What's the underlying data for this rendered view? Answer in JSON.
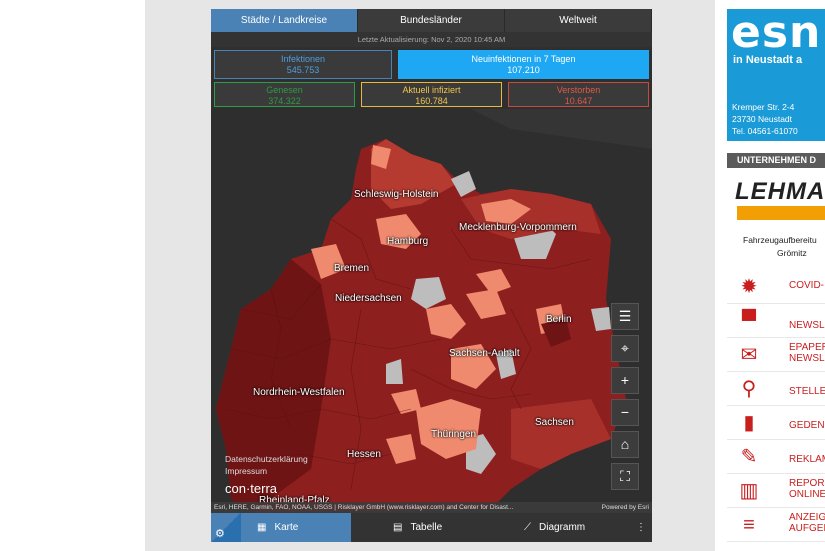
{
  "tabs": [
    "Städte / Landkreise",
    "Bundesländer",
    "Weltweit"
  ],
  "updated": "Letzte Aktualisierung: Nov 2, 2020 10:45 AM",
  "stats": {
    "infektionen": {
      "label": "Infektionen",
      "value": "545.753"
    },
    "neu7": {
      "label": "Neuinfektionen in 7 Tagen",
      "value": "107.210"
    },
    "genesen": {
      "label": "Genesen",
      "value": "374.322"
    },
    "aktuell": {
      "label": "Aktuell infiziert",
      "value": "160.784"
    },
    "verstorben": {
      "label": "Verstorben",
      "value": "10.647"
    }
  },
  "map_labels": {
    "sh": "Schleswig-Holstein",
    "hamburg": "Hamburg",
    "mv": "Mecklenburg-Vorpommern",
    "bremen": "Bremen",
    "nds": "Niedersachsen",
    "berlin": "Berlin",
    "st": "Sachsen-Anhalt",
    "nrw": "Nordrhein-Westfalen",
    "sachsen": "Sachsen",
    "th": "Thüringen",
    "hessen": "Hessen",
    "rp": "Rheinland-Pfalz"
  },
  "privacy": [
    "Datenschutzerklärung",
    "Impressum"
  ],
  "brand": "con·terra",
  "attribution": "Esri, HERE, Garmin, FAO, NOAA, USGS | Risklayer GmbH (www.risklayer.com) and Center for Disast...",
  "powered": "Powered by Esri",
  "bottom_nav": [
    "Karte",
    "Tabelle",
    "Diagramm"
  ],
  "ad_esn": {
    "logo": "esn",
    "title": "in Neustadt a",
    "addr": [
      "Kremper Str. 2-4",
      "23730 Neustadt",
      "Tel. 04561-61070"
    ]
  },
  "unternehmen": "UNTERNEHMEN D",
  "lehmann": {
    "logo": "LEHMA",
    "lines": [
      "Fahrzeugaufbereitu",
      "Grömitz"
    ]
  },
  "side_nav": [
    {
      "label": "COVID-",
      "icon": "virus-icon"
    },
    {
      "label": "NEWSL",
      "icon": "graduation-cap-icon"
    },
    {
      "label": "EPAPER NEWSL",
      "icon": "envelope-icon"
    },
    {
      "label": "STELLE",
      "icon": "magnifier-icon"
    },
    {
      "label": "GEDEN",
      "icon": "candle-icon"
    },
    {
      "label": "REKLAM",
      "icon": "megaphone-icon"
    },
    {
      "label": "REPOR ONLINE",
      "icon": "book-icon"
    },
    {
      "label": "ANZEIGI AUFGEB",
      "icon": "lines-icon"
    }
  ]
}
